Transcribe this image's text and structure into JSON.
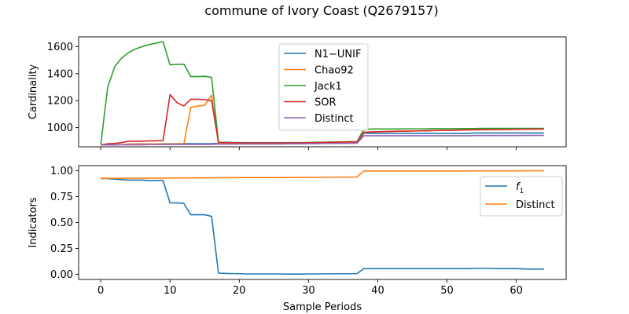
{
  "figure": {
    "title": "commune of Ivory Coast (Q2679157)"
  },
  "chart_data": [
    {
      "type": "line",
      "title": "",
      "xlabel": "",
      "ylabel": "Cardinality",
      "xlim": [
        -3.2,
        67.2
      ],
      "ylim": [
        858,
        1672
      ],
      "xticks": [
        0,
        10,
        20,
        30,
        40,
        50,
        60
      ],
      "xtick_labels_visible": false,
      "yticks": [
        1000,
        1200,
        1400,
        1600
      ],
      "grid": false,
      "legend": "top-center",
      "series": [
        {
          "name": "N1−UNIF",
          "color": "#1f77b4",
          "x": [
            0,
            1,
            2,
            3,
            4,
            5,
            6,
            7,
            8,
            9,
            10,
            11,
            12,
            13,
            14,
            15,
            16,
            17,
            18,
            19,
            20,
            21,
            22,
            23,
            24,
            25,
            26,
            27,
            28,
            29,
            30,
            31,
            32,
            33,
            34,
            35,
            36,
            37,
            38,
            39,
            40,
            41,
            42,
            43,
            44,
            45,
            46,
            47,
            48,
            49,
            50,
            51,
            52,
            53,
            54,
            55,
            56,
            57,
            58,
            59,
            60,
            61,
            62,
            63,
            64
          ],
          "values": [
            872,
            872,
            873,
            874,
            878,
            879,
            879,
            879,
            879,
            880,
            880,
            881,
            881,
            881,
            881,
            881,
            881,
            883,
            883,
            883,
            883,
            883,
            883,
            883,
            884,
            884,
            884,
            884,
            885,
            885,
            885,
            886,
            886,
            887,
            888,
            889,
            890,
            890,
            958,
            958,
            958,
            958,
            958,
            958,
            958,
            958,
            958,
            958,
            958,
            958,
            958,
            958,
            958,
            958,
            960,
            960,
            960,
            960,
            960,
            960,
            960,
            960,
            960,
            960,
            960
          ]
        },
        {
          "name": "Chao92",
          "color": "#ff7f0e",
          "x": [
            0,
            1,
            2,
            3,
            4,
            5,
            6,
            7,
            8,
            9,
            10,
            11,
            12,
            13,
            14,
            15,
            16,
            17,
            18,
            19,
            20,
            21,
            22,
            23,
            24,
            25,
            26,
            27,
            28,
            29,
            30,
            31,
            32,
            33,
            34,
            35,
            36,
            37,
            38,
            39,
            40,
            41,
            42,
            43,
            44,
            45,
            46,
            47,
            48,
            49,
            50,
            51,
            52,
            53,
            54,
            55,
            56,
            57,
            58,
            59,
            60,
            61,
            62,
            63,
            64
          ],
          "values": [
            872,
            872,
            873,
            874,
            877,
            878,
            878,
            878,
            878,
            879,
            879,
            880,
            880,
            1150,
            1160,
            1165,
            1240,
            885,
            885,
            885,
            884,
            884,
            884,
            884,
            885,
            885,
            885,
            885,
            886,
            886,
            886,
            887,
            887,
            888,
            889,
            890,
            891,
            891,
            965,
            967,
            969,
            970,
            972,
            973,
            974,
            975,
            976,
            977,
            978,
            979,
            980,
            981,
            982,
            983,
            984,
            985,
            986,
            986,
            986,
            987,
            988,
            988,
            989,
            989,
            990
          ]
        },
        {
          "name": "Jack1",
          "color": "#2ca02c",
          "x": [
            0,
            1,
            2,
            3,
            4,
            5,
            6,
            7,
            8,
            9,
            10,
            11,
            12,
            13,
            14,
            15,
            16,
            17,
            18,
            19,
            20,
            21,
            22,
            23,
            24,
            25,
            26,
            27,
            28,
            29,
            30,
            31,
            32,
            33,
            34,
            35,
            36,
            37,
            38,
            39,
            40,
            41,
            42,
            43,
            44,
            45,
            46,
            47,
            48,
            49,
            50,
            51,
            52,
            53,
            54,
            55,
            56,
            57,
            58,
            59,
            60,
            61,
            62,
            63,
            64
          ],
          "values": [
            875,
            1300,
            1450,
            1515,
            1555,
            1582,
            1601,
            1615,
            1626,
            1637,
            1465,
            1468,
            1470,
            1378,
            1378,
            1380,
            1372,
            892,
            891,
            890,
            889,
            888,
            888,
            888,
            888,
            888,
            888,
            888,
            888,
            888,
            890,
            891,
            892,
            893,
            894,
            895,
            896,
            896,
            988,
            989,
            990,
            990,
            990,
            990,
            991,
            991,
            991,
            991,
            992,
            992,
            992,
            992,
            993,
            993,
            993,
            994,
            994,
            994,
            994,
            994,
            994,
            994,
            994,
            994,
            994
          ]
        },
        {
          "name": "SOR",
          "color": "#d62728",
          "x": [
            0,
            1,
            2,
            3,
            4,
            5,
            6,
            7,
            8,
            9,
            10,
            11,
            12,
            13,
            14,
            15,
            16,
            17,
            18,
            19,
            20,
            21,
            22,
            23,
            24,
            25,
            26,
            27,
            28,
            29,
            30,
            31,
            32,
            33,
            34,
            35,
            36,
            37,
            38,
            39,
            40,
            41,
            42,
            43,
            44,
            45,
            46,
            47,
            48,
            49,
            50,
            51,
            52,
            53,
            54,
            55,
            56,
            57,
            58,
            59,
            60,
            61,
            62,
            63,
            64
          ],
          "values": [
            873,
            880,
            883,
            888,
            900,
            900,
            900,
            902,
            902,
            904,
            1245,
            1185,
            1160,
            1210,
            1210,
            1208,
            1200,
            890,
            889,
            888,
            887,
            887,
            887,
            887,
            887,
            887,
            887,
            887,
            887,
            887,
            888,
            889,
            890,
            891,
            892,
            893,
            894,
            894,
            966,
            968,
            970,
            971,
            972,
            973,
            974,
            975,
            976,
            977,
            978,
            979,
            980,
            981,
            982,
            983,
            984,
            985,
            985,
            986,
            986,
            987,
            988,
            988,
            989,
            989,
            990
          ]
        },
        {
          "name": "Distinct",
          "color": "#9467bd",
          "x": [
            0,
            1,
            2,
            3,
            4,
            5,
            6,
            7,
            8,
            9,
            10,
            11,
            12,
            13,
            14,
            15,
            16,
            17,
            18,
            19,
            20,
            21,
            22,
            23,
            24,
            25,
            26,
            27,
            28,
            29,
            30,
            31,
            32,
            33,
            34,
            35,
            36,
            37,
            38,
            39,
            40,
            41,
            42,
            43,
            44,
            45,
            46,
            47,
            48,
            49,
            50,
            51,
            52,
            53,
            54,
            55,
            56,
            57,
            58,
            59,
            60,
            61,
            62,
            63,
            64
          ],
          "values": [
            872,
            872,
            872,
            873,
            873,
            873,
            873,
            874,
            874,
            874,
            875,
            875,
            875,
            876,
            876,
            876,
            876,
            878,
            878,
            878,
            879,
            879,
            879,
            879,
            879,
            879,
            879,
            880,
            880,
            880,
            881,
            881,
            882,
            882,
            883,
            883,
            884,
            884,
            940,
            940,
            940,
            940,
            940,
            940,
            940,
            940,
            940,
            940,
            940,
            940,
            940,
            940,
            940,
            940,
            941,
            941,
            941,
            941,
            941,
            941,
            941,
            942,
            942,
            942,
            942
          ]
        }
      ]
    },
    {
      "type": "line",
      "title": "",
      "xlabel": "Sample Periods",
      "ylabel": "Indicators",
      "xlim": [
        -3.2,
        67.2
      ],
      "ylim": [
        -0.05,
        1.05
      ],
      "xticks": [
        0,
        10,
        20,
        30,
        40,
        50,
        60
      ],
      "xtick_labels_visible": true,
      "yticks": [
        0.0,
        0.25,
        0.5,
        0.75,
        1.0
      ],
      "ytick_labels": [
        "0.00",
        "0.25",
        "0.50",
        "0.75",
        "1.00"
      ],
      "grid": false,
      "legend": "top-right",
      "series": [
        {
          "name": "f1",
          "name_base": "f",
          "name_sub": "1",
          "color": "#1f77b4",
          "x": [
            0,
            1,
            2,
            3,
            4,
            5,
            6,
            7,
            8,
            9,
            10,
            11,
            12,
            13,
            14,
            15,
            16,
            17,
            18,
            19,
            20,
            21,
            22,
            23,
            24,
            25,
            26,
            27,
            28,
            29,
            30,
            31,
            32,
            33,
            34,
            35,
            36,
            37,
            38,
            39,
            40,
            41,
            42,
            43,
            44,
            45,
            46,
            47,
            48,
            49,
            50,
            51,
            52,
            53,
            54,
            55,
            56,
            57,
            58,
            59,
            60,
            61,
            62,
            63,
            64
          ],
          "values": [
            0.925,
            0.925,
            0.92,
            0.915,
            0.91,
            0.91,
            0.91,
            0.905,
            0.905,
            0.905,
            0.69,
            0.69,
            0.685,
            0.575,
            0.575,
            0.575,
            0.56,
            0.01,
            0.008,
            0.006,
            0.006,
            0.003,
            0.003,
            0.003,
            0.003,
            0.003,
            0.003,
            0.002,
            0.002,
            0.002,
            0.003,
            0.003,
            0.004,
            0.004,
            0.005,
            0.005,
            0.005,
            0.006,
            0.055,
            0.055,
            0.055,
            0.055,
            0.055,
            0.055,
            0.055,
            0.055,
            0.055,
            0.055,
            0.055,
            0.055,
            0.055,
            0.055,
            0.055,
            0.055,
            0.058,
            0.058,
            0.058,
            0.055,
            0.055,
            0.055,
            0.055,
            0.052,
            0.05,
            0.05,
            0.05
          ]
        },
        {
          "name": "Distinct",
          "color": "#ff7f0e",
          "x": [
            0,
            1,
            2,
            3,
            4,
            5,
            6,
            7,
            8,
            9,
            10,
            11,
            12,
            13,
            14,
            15,
            16,
            17,
            18,
            19,
            20,
            21,
            22,
            23,
            24,
            25,
            26,
            27,
            28,
            29,
            30,
            31,
            32,
            33,
            34,
            35,
            36,
            37,
            38,
            39,
            40,
            41,
            42,
            43,
            44,
            45,
            46,
            47,
            48,
            49,
            50,
            51,
            52,
            53,
            54,
            55,
            56,
            57,
            58,
            59,
            60,
            61,
            62,
            63,
            64
          ],
          "values": [
            0.928,
            0.928,
            0.928,
            0.928,
            0.928,
            0.928,
            0.928,
            0.929,
            0.929,
            0.929,
            0.931,
            0.931,
            0.931,
            0.932,
            0.932,
            0.932,
            0.932,
            0.934,
            0.934,
            0.934,
            0.935,
            0.935,
            0.935,
            0.935,
            0.935,
            0.935,
            0.935,
            0.936,
            0.936,
            0.936,
            0.937,
            0.937,
            0.938,
            0.938,
            0.939,
            0.939,
            0.94,
            0.94,
            0.998,
            0.998,
            0.998,
            0.998,
            0.998,
            0.998,
            0.998,
            0.998,
            0.998,
            0.998,
            0.998,
            0.998,
            0.998,
            0.998,
            0.998,
            0.998,
            0.999,
            0.999,
            0.999,
            0.999,
            0.999,
            0.999,
            0.999,
            1.0,
            1.0,
            1.0,
            1.0
          ]
        }
      ]
    }
  ]
}
